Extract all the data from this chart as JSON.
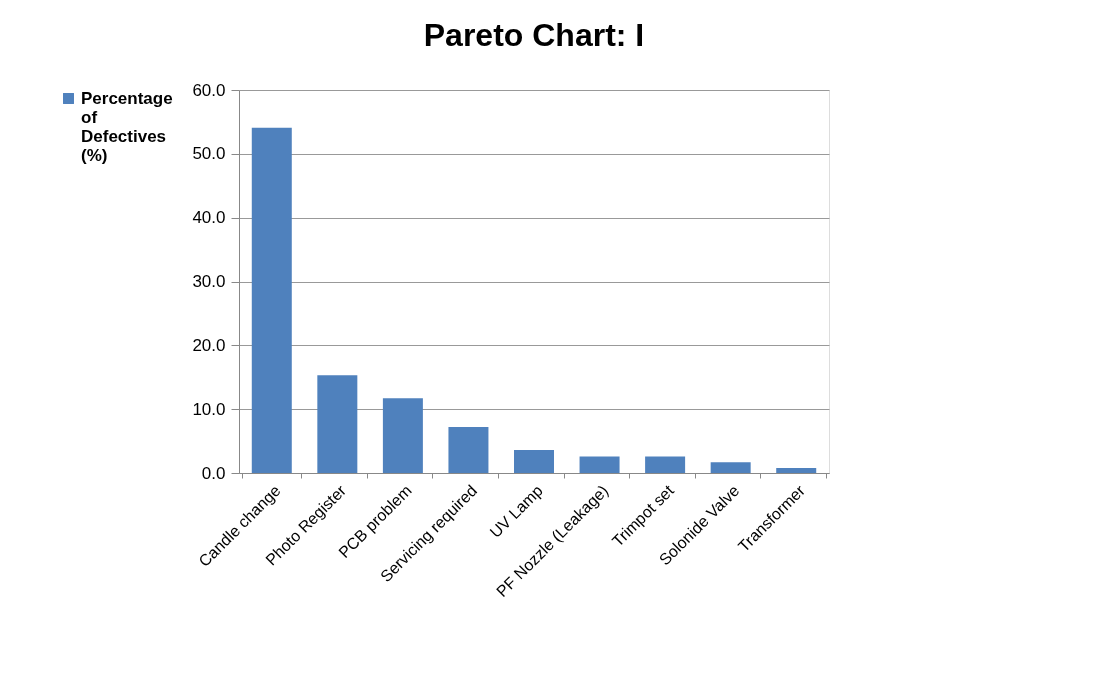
{
  "chart_data": {
    "type": "bar",
    "title": "Pareto Chart: I",
    "categories": [
      "Candle change",
      "Photo Register",
      "PCB problem",
      "Servicing required",
      "UV Lamp",
      "PF Nozzle (Leakage)",
      "Trimpot set",
      "Solonide Valve",
      "Transformer"
    ],
    "series": [
      {
        "name": "Percentage of Defectives (%)",
        "color": "#4f81bd",
        "values": [
          54.1,
          15.3,
          11.7,
          7.2,
          3.6,
          2.6,
          2.6,
          1.7,
          0.8
        ]
      }
    ],
    "ylim": [
      0,
      60
    ],
    "yticks": [
      {
        "value": 0,
        "label": "0.0"
      },
      {
        "value": 10,
        "label": "10.0"
      },
      {
        "value": 20,
        "label": "20.0"
      },
      {
        "value": 30,
        "label": "30.0"
      },
      {
        "value": 40,
        "label": "40.0"
      },
      {
        "value": 50,
        "label": "50.0"
      },
      {
        "value": 60,
        "label": "60.0"
      }
    ],
    "grid": "y",
    "legend": "left"
  }
}
